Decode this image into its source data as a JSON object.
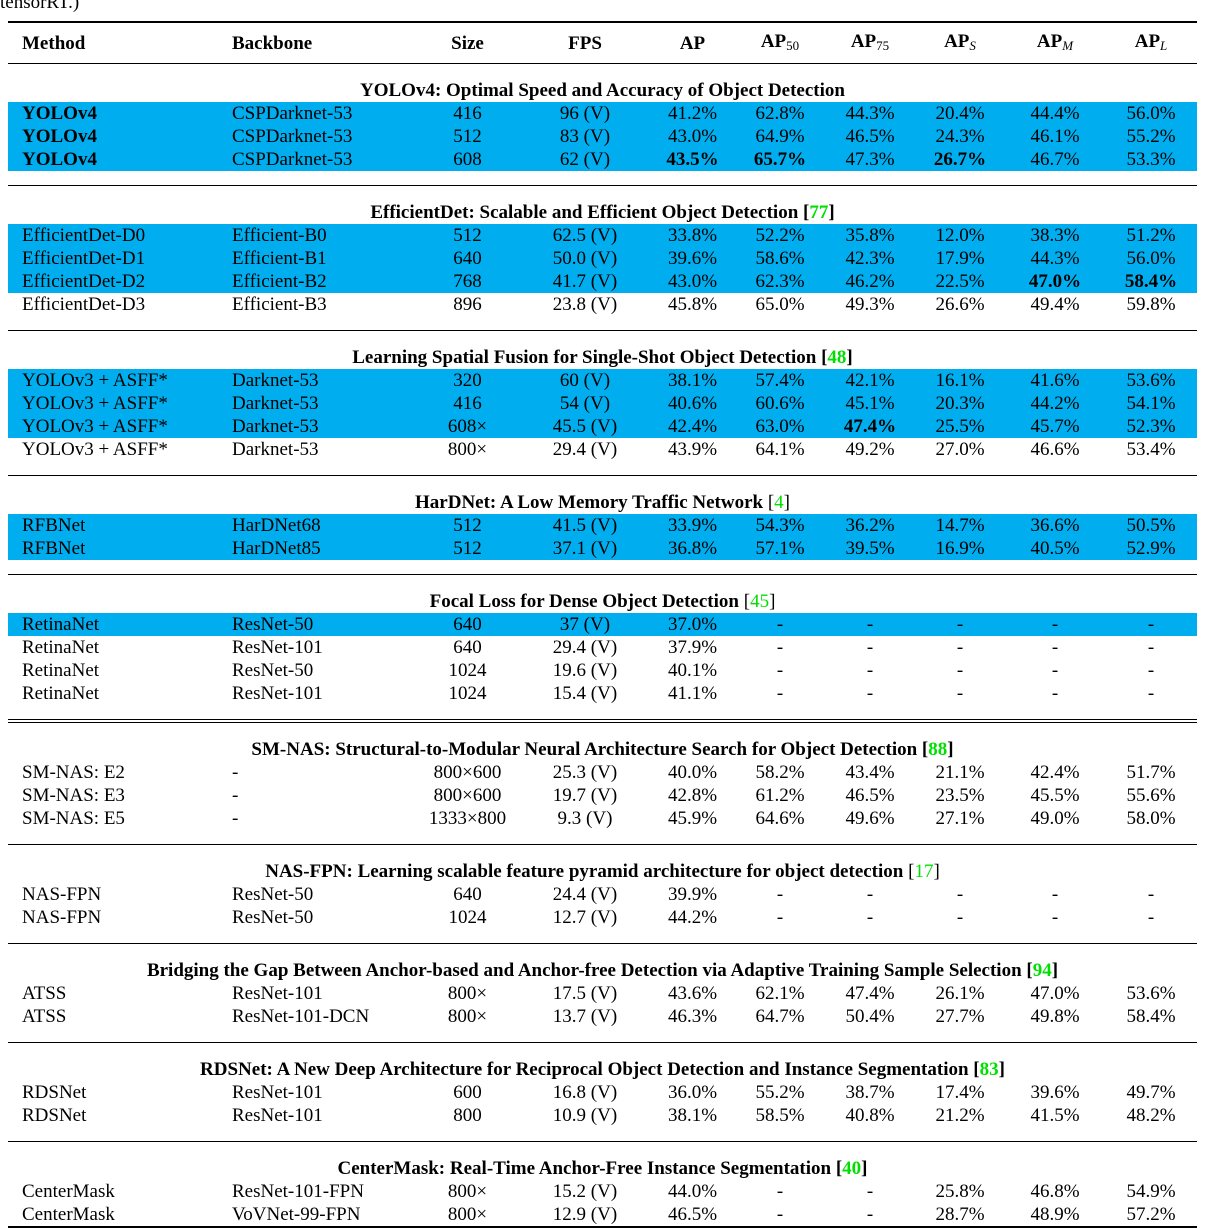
{
  "caption_fragment": "tensorRT.)",
  "table": {
    "columns": [
      {
        "text": "Method"
      },
      {
        "text": "Backbone"
      },
      {
        "text": "Size"
      },
      {
        "text": "FPS"
      },
      {
        "text": "AP"
      },
      {
        "text": "AP",
        "sub": "50"
      },
      {
        "text": "AP",
        "sub": "75"
      },
      {
        "text": "AP",
        "sub": "S",
        "sub_italic": true
      },
      {
        "text": "AP",
        "sub": "M",
        "sub_italic": true
      },
      {
        "text": "AP",
        "sub": "L",
        "sub_italic": true
      }
    ],
    "groups": [
      {
        "title": "YOLOv4: Optimal Speed and Accuracy of Object Detection",
        "rows": [
          {
            "cells": [
              "YOLOv4",
              "CSPDarknet-53",
              "416",
              "96 (V)",
              "41.2%",
              "62.8%",
              "44.3%",
              "20.4%",
              "44.4%",
              "56.0%"
            ],
            "highlight": true,
            "bold": [
              0
            ]
          },
          {
            "cells": [
              "YOLOv4",
              "CSPDarknet-53",
              "512",
              "83 (V)",
              "43.0%",
              "64.9%",
              "46.5%",
              "24.3%",
              "46.1%",
              "55.2%"
            ],
            "highlight": true,
            "bold": [
              0
            ]
          },
          {
            "cells": [
              "YOLOv4",
              "CSPDarknet-53",
              "608",
              "62 (V)",
              "43.5%",
              "65.7%",
              "47.3%",
              "26.7%",
              "46.7%",
              "53.3%"
            ],
            "highlight": true,
            "bold": [
              0,
              4,
              5,
              7
            ]
          }
        ]
      },
      {
        "title": "EfficientDet: Scalable and Efficient Object Detection",
        "citation": {
          "open": "[",
          "number": "77",
          "close": "]",
          "bold": true
        },
        "rows": [
          {
            "cells": [
              "EfficientDet-D0",
              "Efficient-B0",
              "512",
              "62.5 (V)",
              "33.8%",
              "52.2%",
              "35.8%",
              "12.0%",
              "38.3%",
              "51.2%"
            ],
            "highlight": true
          },
          {
            "cells": [
              "EfficientDet-D1",
              "Efficient-B1",
              "640",
              "50.0 (V)",
              "39.6%",
              "58.6%",
              "42.3%",
              "17.9%",
              "44.3%",
              "56.0%"
            ],
            "highlight": true
          },
          {
            "cells": [
              "EfficientDet-D2",
              "Efficient-B2",
              "768",
              "41.7 (V)",
              "43.0%",
              "62.3%",
              "46.2%",
              "22.5%",
              "47.0%",
              "58.4%"
            ],
            "highlight": true,
            "bold": [
              8,
              9
            ]
          },
          {
            "cells": [
              "EfficientDet-D3",
              "Efficient-B3",
              "896",
              "23.8 (V)",
              "45.8%",
              "65.0%",
              "49.3%",
              "26.6%",
              "49.4%",
              "59.8%"
            ]
          }
        ]
      },
      {
        "title": "Learning Spatial Fusion for Single-Shot Object Detection",
        "citation": {
          "open": "[",
          "number": "48",
          "close": "]",
          "bold": true
        },
        "rows": [
          {
            "cells": [
              "YOLOv3 + ASFF*",
              "Darknet-53",
              "320",
              "60 (V)",
              "38.1%",
              "57.4%",
              "42.1%",
              "16.1%",
              "41.6%",
              "53.6%"
            ],
            "highlight": true
          },
          {
            "cells": [
              "YOLOv3 + ASFF*",
              "Darknet-53",
              "416",
              "54 (V)",
              "40.6%",
              "60.6%",
              "45.1%",
              "20.3%",
              "44.2%",
              "54.1%"
            ],
            "highlight": true
          },
          {
            "cells": [
              "YOLOv3 + ASFF*",
              "Darknet-53",
              "608×",
              "45.5 (V)",
              "42.4%",
              "63.0%",
              "47.4%",
              "25.5%",
              "45.7%",
              "52.3%"
            ],
            "highlight": true,
            "bold": [
              6
            ]
          },
          {
            "cells": [
              "YOLOv3 + ASFF*",
              "Darknet-53",
              "800×",
              "29.4 (V)",
              "43.9%",
              "64.1%",
              "49.2%",
              "27.0%",
              "46.6%",
              "53.4%"
            ]
          }
        ]
      },
      {
        "title": "HarDNet: A Low Memory Traffic Network",
        "citation": {
          "open": "[",
          "number": "4",
          "close": "]",
          "bold": false
        },
        "rows": [
          {
            "cells": [
              "RFBNet",
              "HarDNet68",
              "512",
              "41.5 (V)",
              "33.9%",
              "54.3%",
              "36.2%",
              "14.7%",
              "36.6%",
              "50.5%"
            ],
            "highlight": true
          },
          {
            "cells": [
              "RFBNet",
              "HarDNet85",
              "512",
              "37.1 (V)",
              "36.8%",
              "57.1%",
              "39.5%",
              "16.9%",
              "40.5%",
              "52.9%"
            ],
            "highlight": true
          }
        ]
      },
      {
        "title": "Focal Loss for Dense Object Detection",
        "citation": {
          "open": "[",
          "number": "45",
          "close": "]",
          "bold": false
        },
        "rows": [
          {
            "cells": [
              "RetinaNet",
              "ResNet-50",
              "640",
              "37 (V)",
              "37.0%",
              "-",
              "-",
              "-",
              "-",
              "-"
            ],
            "highlight": true
          },
          {
            "cells": [
              "RetinaNet",
              "ResNet-101",
              "640",
              "29.4 (V)",
              "37.9%",
              "-",
              "-",
              "-",
              "-",
              "-"
            ]
          },
          {
            "cells": [
              "RetinaNet",
              "ResNet-50",
              "1024",
              "19.6 (V)",
              "40.1%",
              "-",
              "-",
              "-",
              "-",
              "-"
            ]
          },
          {
            "cells": [
              "RetinaNet",
              "ResNet-101",
              "1024",
              "15.4 (V)",
              "41.1%",
              "-",
              "-",
              "-",
              "-",
              "-"
            ]
          }
        ]
      },
      {
        "title": "SM-NAS: Structural-to-Modular Neural Architecture Search for Object Detection",
        "citation": {
          "open": "[",
          "number": "88",
          "close": "]",
          "bold": true
        },
        "double_rule": true,
        "rows": [
          {
            "cells": [
              "SM-NAS: E2",
              "-",
              "800×600",
              "25.3 (V)",
              "40.0%",
              "58.2%",
              "43.4%",
              "21.1%",
              "42.4%",
              "51.7%"
            ]
          },
          {
            "cells": [
              "SM-NAS: E3",
              "-",
              "800×600",
              "19.7 (V)",
              "42.8%",
              "61.2%",
              "46.5%",
              "23.5%",
              "45.5%",
              "55.6%"
            ]
          },
          {
            "cells": [
              "SM-NAS: E5",
              "-",
              "1333×800",
              "9.3 (V)",
              "45.9%",
              "64.6%",
              "49.6%",
              "27.1%",
              "49.0%",
              "58.0%"
            ]
          }
        ]
      },
      {
        "title": "NAS-FPN: Learning scalable feature pyramid architecture for object detection",
        "citation": {
          "open": "[",
          "number": "17",
          "close": "]",
          "bold": false
        },
        "rows": [
          {
            "cells": [
              "NAS-FPN",
              "ResNet-50",
              "640",
              "24.4 (V)",
              "39.9%",
              "-",
              "-",
              "-",
              "-",
              "-"
            ]
          },
          {
            "cells": [
              "NAS-FPN",
              "ResNet-50",
              "1024",
              "12.7 (V)",
              "44.2%",
              "-",
              "-",
              "-",
              "-",
              "-"
            ]
          }
        ]
      },
      {
        "title": "Bridging the Gap Between Anchor-based and Anchor-free Detection via Adaptive Training Sample Selection",
        "citation": {
          "open": "[",
          "number": "94",
          "close": "]",
          "bold": true
        },
        "rows": [
          {
            "cells": [
              "ATSS",
              "ResNet-101",
              "800×",
              "17.5 (V)",
              "43.6%",
              "62.1%",
              "47.4%",
              "26.1%",
              "47.0%",
              "53.6%"
            ]
          },
          {
            "cells": [
              "ATSS",
              "ResNet-101-DCN",
              "800×",
              "13.7 (V)",
              "46.3%",
              "64.7%",
              "50.4%",
              "27.7%",
              "49.8%",
              "58.4%"
            ]
          }
        ]
      },
      {
        "title": "RDSNet: A New Deep Architecture for Reciprocal Object Detection and Instance Segmentation",
        "citation": {
          "open": "[",
          "number": "83",
          "close": "]",
          "bold": true
        },
        "rows": [
          {
            "cells": [
              "RDSNet",
              "ResNet-101",
              "600",
              "16.8 (V)",
              "36.0%",
              "55.2%",
              "38.7%",
              "17.4%",
              "39.6%",
              "49.7%"
            ]
          },
          {
            "cells": [
              "RDSNet",
              "ResNet-101",
              "800",
              "10.9 (V)",
              "38.1%",
              "58.5%",
              "40.8%",
              "21.2%",
              "41.5%",
              "48.2%"
            ]
          }
        ]
      },
      {
        "title": "CenterMask: Real-Time Anchor-Free Instance Segmentation",
        "citation": {
          "open": "[",
          "number": "40",
          "close": "]",
          "bold": true
        },
        "rows": [
          {
            "cells": [
              "CenterMask",
              "ResNet-101-FPN",
              "800×",
              "15.2 (V)",
              "44.0%",
              "-",
              "-",
              "25.8%",
              "46.8%",
              "54.9%"
            ]
          },
          {
            "cells": [
              "CenterMask",
              "VoVNet-99-FPN",
              "800×",
              "12.9 (V)",
              "46.5%",
              "-",
              "-",
              "28.7%",
              "48.9%",
              "57.2%"
            ]
          }
        ]
      }
    ]
  }
}
